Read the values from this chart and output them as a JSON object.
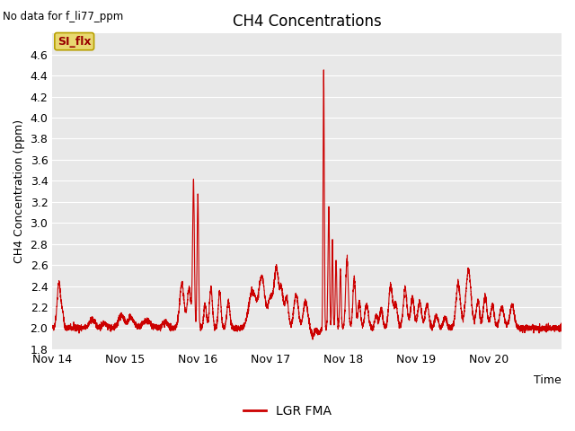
{
  "title": "CH4 Concentrations",
  "xlabel": "Time",
  "ylabel": "CH4 Concentration (ppm)",
  "top_left_text": "No data for f_li77_ppm",
  "ylim": [
    1.8,
    4.8
  ],
  "yticks": [
    1.8,
    2.0,
    2.2,
    2.4,
    2.6,
    2.8,
    3.0,
    3.2,
    3.4,
    3.6,
    3.8,
    4.0,
    4.2,
    4.4,
    4.6
  ],
  "xtick_labels": [
    "Nov 14",
    "Nov 15",
    "Nov 16",
    "Nov 17",
    "Nov 18",
    "Nov 19",
    "Nov 20"
  ],
  "line_color": "#cc0000",
  "line_width": 0.8,
  "plot_bg_color": "#e8e8e8",
  "legend_label": "LGR FMA",
  "si_flx_label": "SI_flx",
  "si_flx_bg": "#e8d870",
  "si_flx_text_color": "#990000",
  "title_fontsize": 12,
  "axis_fontsize": 9,
  "ylabel_fontsize": 9
}
